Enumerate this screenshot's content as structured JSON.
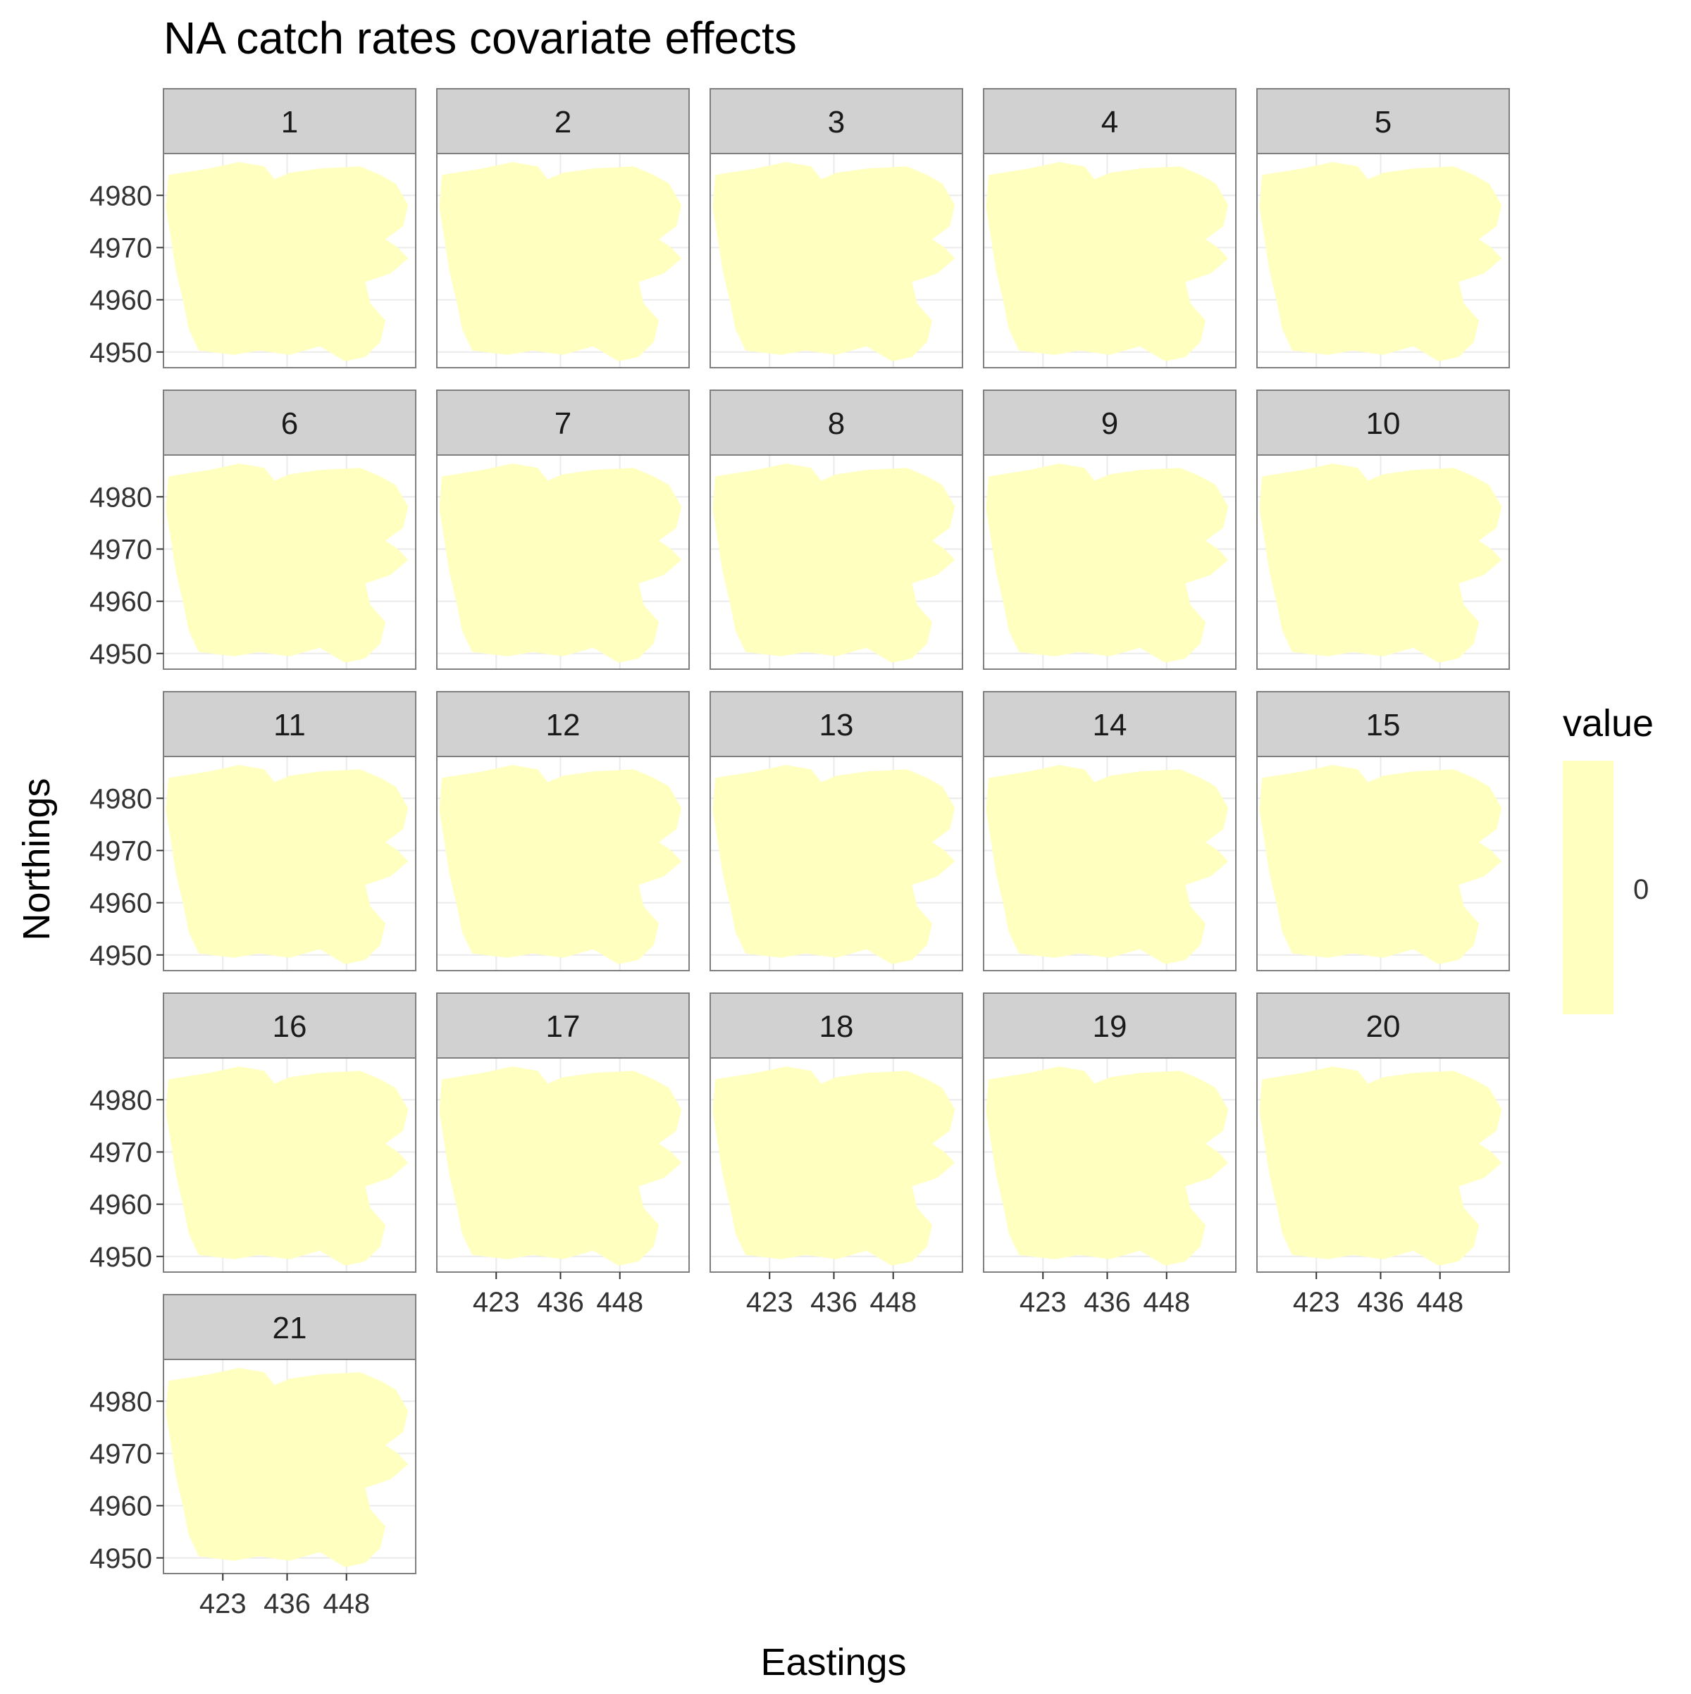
{
  "chart_data": {
    "type": "heatmap",
    "title": "NA catch rates covariate effects",
    "xlabel": "Eastings",
    "ylabel": "Northings",
    "xlim": [
      411,
      462
    ],
    "ylim": [
      4947,
      4988
    ],
    "x_ticks": [
      423,
      436,
      448
    ],
    "y_ticks": [
      4950,
      4960,
      4970,
      4980
    ],
    "x_tick_labels": [
      "423",
      "436",
      "448"
    ],
    "y_tick_labels": [
      "4950",
      "4960",
      "4970",
      "4980"
    ],
    "grid": true,
    "facets": [
      "1",
      "2",
      "3",
      "4",
      "5",
      "6",
      "7",
      "8",
      "9",
      "10",
      "11",
      "12",
      "13",
      "14",
      "15",
      "16",
      "17",
      "18",
      "19",
      "20",
      "21"
    ],
    "facet_layout": {
      "ncol": 5,
      "nrow": 5
    },
    "legend": {
      "title": "value",
      "position": "right",
      "labels": [
        "0"
      ],
      "values": [
        0
      ]
    },
    "fill_value": 0,
    "fill_color": "#FFFFC0",
    "panel_border_color": "#7f7f7f",
    "strip_fill": "#d1d1d1",
    "grid_color": "#ebebeb"
  }
}
